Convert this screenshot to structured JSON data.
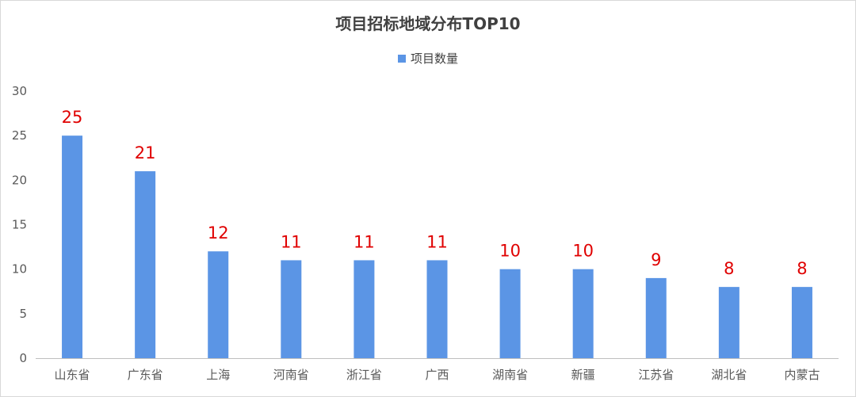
{
  "chart_data": {
    "type": "bar",
    "title": "项目招标地域分布TOP10",
    "categories": [
      "山东省",
      "广东省",
      "上海",
      "河南省",
      "浙江省",
      "广西",
      "湖南省",
      "新疆",
      "江苏省",
      "湖北省",
      "内蒙古"
    ],
    "series": [
      {
        "name": "项目数量",
        "values": [
          25,
          21,
          12,
          11,
          11,
          11,
          10,
          10,
          9,
          8,
          8
        ]
      }
    ],
    "ylim": [
      0,
      30
    ],
    "yticks": [
      0,
      5,
      10,
      15,
      20,
      25,
      30
    ],
    "grid": false,
    "legend_position": "top-center",
    "colors": {
      "bar": "#5b95e5",
      "data_label": "#e00000",
      "axis": "#bfbfbf"
    }
  }
}
